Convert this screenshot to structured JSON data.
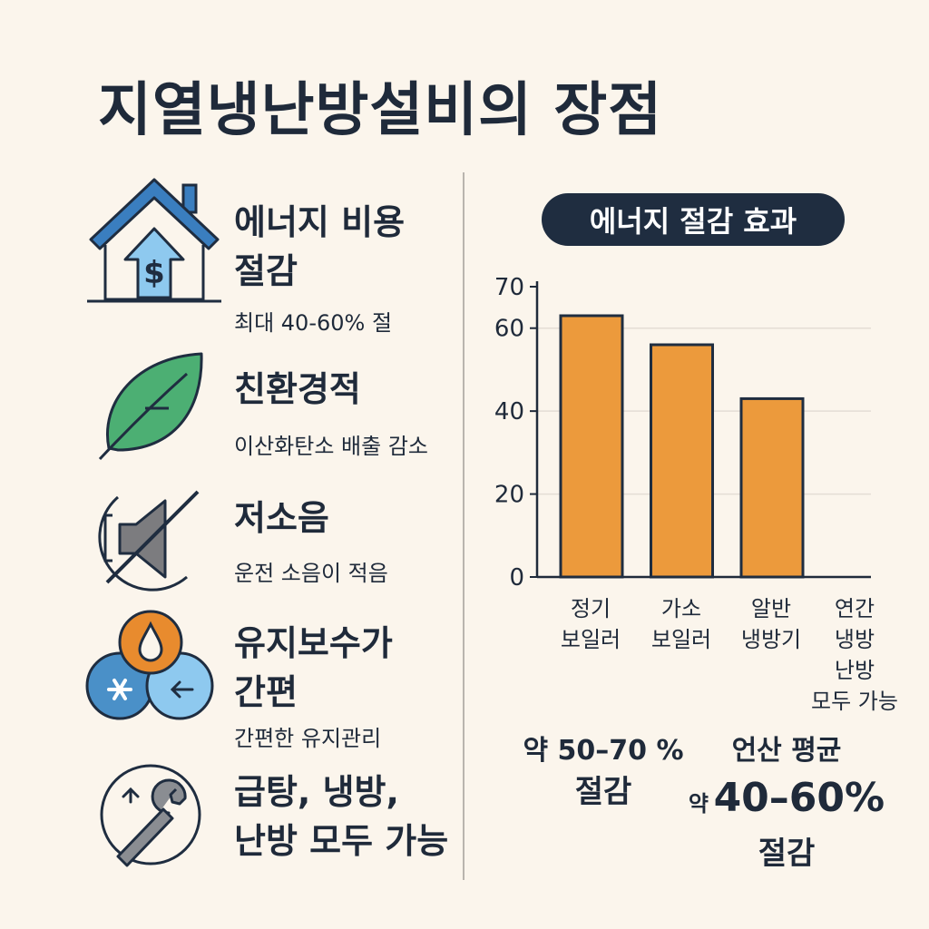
{
  "title": "지열냉난방설비의 장점",
  "benefits": [
    {
      "title_lines": [
        "에너지 비용",
        "절감"
      ],
      "sub": "최대 40-60% 절",
      "icon": "house-dollar-icon"
    },
    {
      "title_lines": [
        "친환경적"
      ],
      "sub": "이산화탄소 배출 감소",
      "icon": "leaf-icon"
    },
    {
      "title_lines": [
        "저소음"
      ],
      "sub": "운전 소음이 적음",
      "icon": "muted-speaker-icon"
    },
    {
      "title_lines": [
        "유지보수가",
        "간편"
      ],
      "sub": "간편한 유지관리",
      "icon": "water-snow-cycle-icon"
    },
    {
      "title_lines": [
        "급탕, 냉방,",
        "난방 모두 가능"
      ],
      "sub": "",
      "icon": "wrench-icon"
    }
  ],
  "chart_title": "에너지 절감 효과",
  "chart_data": {
    "type": "bar",
    "title": "에너지 절감 효과",
    "categories": [
      "정기 보일러",
      "가소 보일러",
      "알반 냉방기",
      "연간 냉방 난방 모두 가능"
    ],
    "category_lines": [
      [
        "정기",
        "보일러"
      ],
      [
        "가소",
        "보일러"
      ],
      [
        "알반",
        "냉방기"
      ],
      [
        "연간",
        "냉방",
        "난방",
        "모두 가능"
      ]
    ],
    "values": [
      63,
      56,
      43,
      0
    ],
    "ylim": [
      0,
      70
    ],
    "yticks": [
      0,
      20,
      40,
      60,
      70
    ],
    "grid": true,
    "colors": {
      "bar": "#ec9a3c",
      "bar_edge": "#1f2d40",
      "axis": "#1f2a3a",
      "grid": "#e4ddd5"
    }
  },
  "notes": {
    "left_lines": [
      "약 50–70 %",
      "절감"
    ],
    "right_top": "언산 평균",
    "right_prefix": "약",
    "right_value": "40–60%",
    "right_bottom": "절감"
  },
  "colors": {
    "background": "#fbf5ec",
    "text": "#1f2a3a",
    "pill": "#1f2d40",
    "house": "#3a7ebf",
    "leaf": "#4caf73",
    "drop": "#e88b2e",
    "snow": "#4a90c8"
  }
}
